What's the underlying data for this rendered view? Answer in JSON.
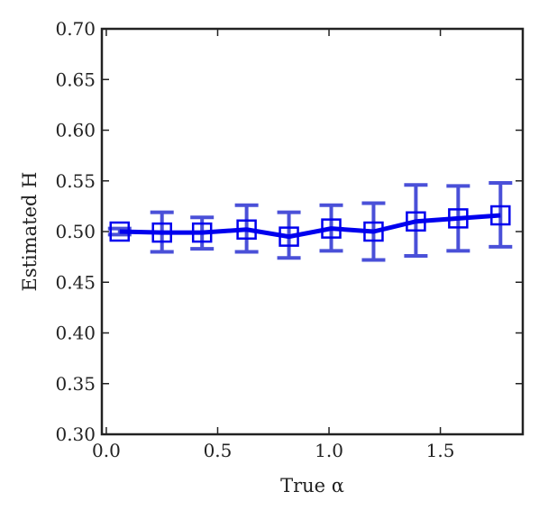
{
  "chart_data": {
    "type": "line",
    "xlabel": "True α",
    "ylabel": "Estimated H",
    "xlim": [
      -0.02,
      1.87
    ],
    "ylim": [
      0.3,
      0.7
    ],
    "xticks": [
      0.0,
      0.5,
      1.0,
      1.5
    ],
    "xtick_labels": [
      "0.0",
      "0.5",
      "1.0",
      "1.5"
    ],
    "yticks": [
      0.3,
      0.35,
      0.4,
      0.45,
      0.5,
      0.55,
      0.6,
      0.65,
      0.7
    ],
    "ytick_labels": [
      "0.30",
      "0.35",
      "0.40",
      "0.45",
      "0.50",
      "0.55",
      "0.60",
      "0.65",
      "0.70"
    ],
    "grid": false,
    "colors": {
      "line": "#0000ee",
      "errorbar": "#4a50d8",
      "axes": "#222222"
    },
    "series": [
      {
        "marker": "square",
        "x": [
          0.06,
          0.25,
          0.43,
          0.63,
          0.82,
          1.01,
          1.2,
          1.39,
          1.58,
          1.77
        ],
        "y": [
          0.5,
          0.499,
          0.499,
          0.502,
          0.495,
          0.503,
          0.5,
          0.51,
          0.513,
          0.516
        ],
        "yerr_low": [
          0.497,
          0.48,
          0.483,
          0.48,
          0.474,
          0.481,
          0.472,
          0.476,
          0.481,
          0.485
        ],
        "yerr_high": [
          0.503,
          0.519,
          0.514,
          0.526,
          0.519,
          0.526,
          0.528,
          0.546,
          0.545,
          0.548
        ]
      }
    ]
  }
}
